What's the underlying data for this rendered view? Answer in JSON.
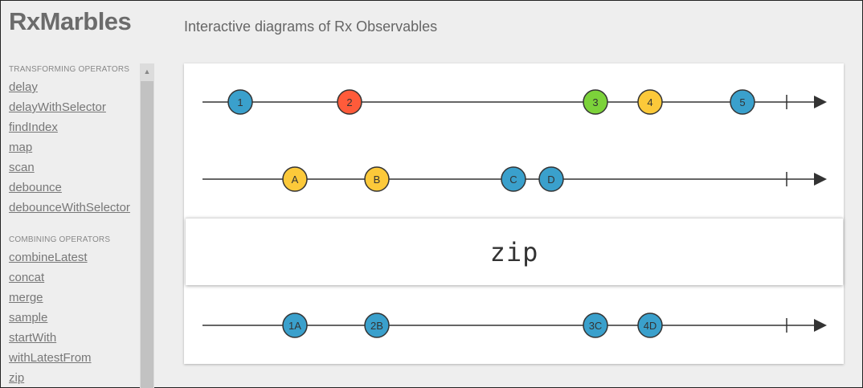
{
  "header": {
    "logo": "RxMarbles",
    "tagline": "Interactive diagrams of Rx Observables"
  },
  "sidebar": {
    "sections": [
      {
        "title": "TRANSFORMING OPERATORS",
        "items": [
          "delay",
          "delayWithSelector",
          "findIndex",
          "map",
          "scan",
          "debounce",
          "debounceWithSelector"
        ]
      },
      {
        "title": "COMBINING OPERATORS",
        "items": [
          "combineLatest",
          "concat",
          "merge",
          "sample",
          "startWith",
          "withLatestFrom",
          "zip"
        ]
      }
    ]
  },
  "diagram": {
    "operator": "zip",
    "colors": {
      "blue": "#3aa0cc",
      "red": "#ff5b3a",
      "green": "#7cd23a",
      "yellow": "#fcc93a"
    },
    "input1": [
      {
        "label": "1",
        "color": "blue"
      },
      {
        "label": "2",
        "color": "red"
      },
      {
        "label": "3",
        "color": "green"
      },
      {
        "label": "4",
        "color": "yellow"
      },
      {
        "label": "5",
        "color": "blue"
      }
    ],
    "input2": [
      {
        "label": "A",
        "color": "yellow"
      },
      {
        "label": "B",
        "color": "yellow"
      },
      {
        "label": "C",
        "color": "blue"
      },
      {
        "label": "D",
        "color": "blue"
      }
    ],
    "output": [
      {
        "label": "1A",
        "color": "blue"
      },
      {
        "label": "2B",
        "color": "blue"
      },
      {
        "label": "3C",
        "color": "blue"
      },
      {
        "label": "4D",
        "color": "blue"
      }
    ]
  }
}
